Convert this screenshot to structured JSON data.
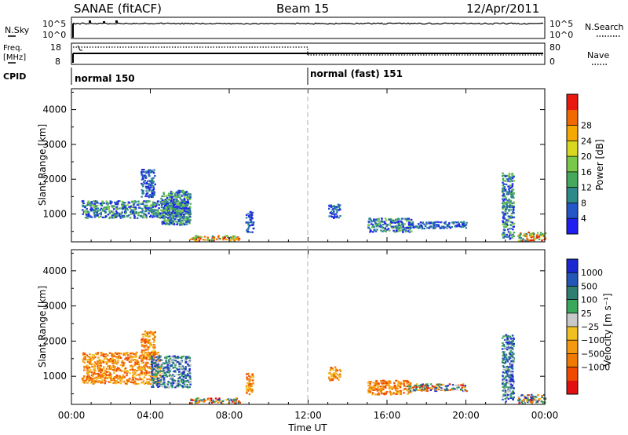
{
  "header": {
    "title": "SANAE (fitACF)",
    "beam": "Beam 15",
    "date": "12/Apr/2011"
  },
  "top_panels": {
    "nsky_label": "N.Sky",
    "nsearch_label": "N.Search",
    "freq_label_1": "Freq.",
    "freq_label_2": "[MHz]",
    "nave_label": "Nave",
    "cpid_label": "CPID",
    "nsky_ticks": [
      "10^5",
      "10^0"
    ],
    "nsearch_ticks": [
      "10^5",
      "10^0"
    ],
    "freq_ticks": [
      "18",
      "8"
    ],
    "nave_ticks": [
      "80",
      "0"
    ],
    "cpid_segments": [
      {
        "label": "normal 150",
        "start_hour": 0
      },
      {
        "label": "normal (fast) 151",
        "start_hour": 12
      }
    ]
  },
  "chart_data": [
    {
      "type": "heatmap",
      "name": "power",
      "xlabel": "",
      "ylabel": "Slant Range [km]",
      "xlim_hours": [
        0,
        24
      ],
      "ylim": [
        200,
        4600
      ],
      "yticks": [
        "1000",
        "2000",
        "3000",
        "4000"
      ],
      "colorbar_label": "Power [dB]",
      "colorbar_ticks": [
        "4",
        "8",
        "12",
        "16",
        "20",
        "24",
        "28"
      ],
      "colorbar_colors": [
        "#1f1ff0",
        "#2456c8",
        "#2e8a8a",
        "#45a85a",
        "#7ac84a",
        "#d8d820",
        "#f5a800",
        "#f06a00",
        "#e81a10"
      ],
      "scatter_regions": [
        {
          "x0": 0.5,
          "x1": 6.0,
          "y0": 900,
          "y1": 1400,
          "level": "mid"
        },
        {
          "x0": 3.5,
          "x1": 4.2,
          "y0": 1500,
          "y1": 2300,
          "level": "low"
        },
        {
          "x0": 4.5,
          "x1": 6.0,
          "y0": 700,
          "y1": 1700,
          "level": "mid"
        },
        {
          "x0": 6.0,
          "x1": 8.5,
          "y0": 250,
          "y1": 400,
          "level": "high"
        },
        {
          "x0": 8.8,
          "x1": 9.2,
          "y0": 500,
          "y1": 1100,
          "level": "low"
        },
        {
          "x0": 13.0,
          "x1": 13.6,
          "y0": 900,
          "y1": 1300,
          "level": "low"
        },
        {
          "x0": 15.0,
          "x1": 17.2,
          "y0": 500,
          "y1": 900,
          "level": "mid"
        },
        {
          "x0": 17.0,
          "x1": 20.0,
          "y0": 600,
          "y1": 800,
          "level": "low"
        },
        {
          "x0": 21.8,
          "x1": 22.4,
          "y0": 300,
          "y1": 2200,
          "level": "mid"
        },
        {
          "x0": 22.6,
          "x1": 24.0,
          "y0": 250,
          "y1": 500,
          "level": "high"
        }
      ]
    },
    {
      "type": "heatmap",
      "name": "velocity",
      "xlabel": "Time UT",
      "ylabel": "Slant Range [km]",
      "xlim_hours": [
        0,
        24
      ],
      "ylim": [
        200,
        4600
      ],
      "xticks": [
        "00:00",
        "04:00",
        "08:00",
        "12:00",
        "16:00",
        "20:00",
        "00:00"
      ],
      "yticks": [
        "1000",
        "2000",
        "3000",
        "4000"
      ],
      "colorbar_label": "Velocity [m s⁻¹]",
      "colorbar_ticks": [
        "1000",
        "500",
        "100",
        "25",
        "−25",
        "−100",
        "−500",
        "−1000"
      ],
      "colorbar_colors": [
        "#1a2ad0",
        "#2456b8",
        "#2f7e72",
        "#3aa85a",
        "#c8c8c8",
        "#f0c020",
        "#f59a10",
        "#f07a00",
        "#f04a00",
        "#e01010"
      ],
      "scatter_regions": [
        {
          "x0": 0.5,
          "x1": 4.5,
          "y0": 800,
          "y1": 1700,
          "level": "neg"
        },
        {
          "x0": 3.5,
          "x1": 4.2,
          "y0": 1500,
          "y1": 2300,
          "level": "neg"
        },
        {
          "x0": 4.0,
          "x1": 6.0,
          "y0": 700,
          "y1": 1600,
          "level": "pos"
        },
        {
          "x0": 6.0,
          "x1": 8.5,
          "y0": 250,
          "y1": 400,
          "level": "mix"
        },
        {
          "x0": 8.8,
          "x1": 9.2,
          "y0": 500,
          "y1": 1100,
          "level": "neg"
        },
        {
          "x0": 13.0,
          "x1": 13.6,
          "y0": 900,
          "y1": 1300,
          "level": "neg"
        },
        {
          "x0": 15.0,
          "x1": 17.2,
          "y0": 500,
          "y1": 900,
          "level": "neg"
        },
        {
          "x0": 17.0,
          "x1": 20.0,
          "y0": 600,
          "y1": 800,
          "level": "mix"
        },
        {
          "x0": 21.8,
          "x1": 22.4,
          "y0": 300,
          "y1": 2200,
          "level": "pos"
        },
        {
          "x0": 22.6,
          "x1": 24.0,
          "y0": 250,
          "y1": 500,
          "level": "mix"
        }
      ]
    }
  ]
}
